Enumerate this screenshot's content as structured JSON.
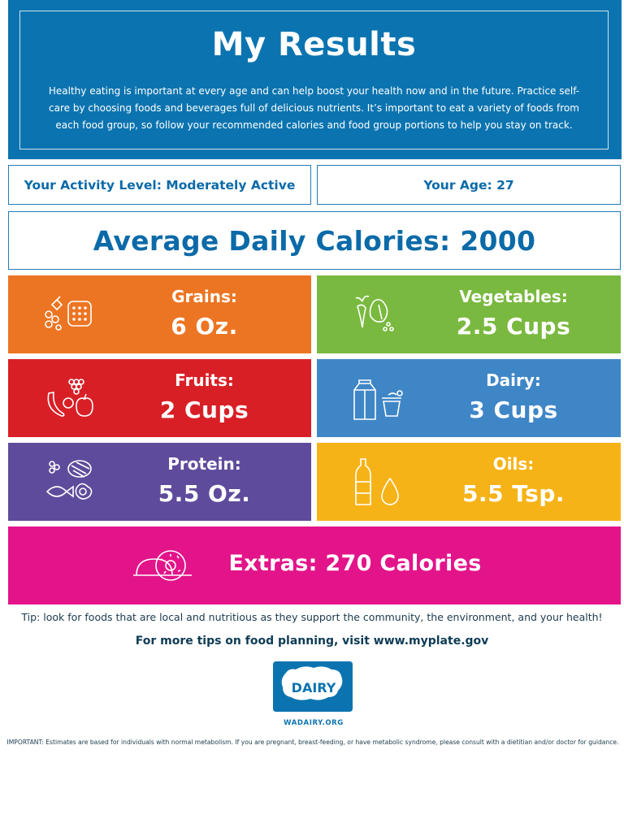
{
  "header": {
    "title": "My Results",
    "intro": "Healthy eating is important at every age and can help boost your health now and in the future. Practice self-care by choosing foods and beverages full of delicious nutrients. It’s important to eat a variety of foods from each food group, so follow your recommended calories and food group portions to help you stay on track."
  },
  "info": {
    "activity": "Your Activity Level: Moderately Active",
    "age": "Your Age: 27"
  },
  "calories": "Average Daily Calories: 2000",
  "groups": [
    {
      "label": "Grains:",
      "value": "6 Oz.",
      "color": "#ec7523",
      "icon": "grains-icon"
    },
    {
      "label": "Vegetables:",
      "value": "2.5 Cups",
      "color": "#7ab940",
      "icon": "vegetables-icon"
    },
    {
      "label": "Fruits:",
      "value": "2 Cups",
      "color": "#d91f26",
      "icon": "fruits-icon"
    },
    {
      "label": "Dairy:",
      "value": "3 Cups",
      "color": "#3f86c7",
      "icon": "dairy-icon"
    },
    {
      "label": "Protein:",
      "value": "5.5 Oz.",
      "color": "#5f4b9c",
      "icon": "protein-icon"
    },
    {
      "label": "Oils:",
      "value": "5.5 Tsp.",
      "color": "#f6b317",
      "icon": "oils-icon"
    }
  ],
  "extras": {
    "label": "Extras: 270 Calories",
    "color": "#e3148a",
    "icon": "donut-icon"
  },
  "tip": "Tip: look for foods that are local and nutritious as they support the community, the environment, and your health!",
  "more_tips": "For more tips on food planning, visit www.myplate.gov",
  "logo": {
    "word": "DAIRY",
    "site": "WADAIRY.ORG",
    "color": "#0b74b0"
  },
  "important": "IMPORTANT: Estimates are based for individuals with normal metabolism. If you are pregnant, breast-feeding, or have metabolic syndrome, please consult with a dietitian and/or doctor for guidance."
}
